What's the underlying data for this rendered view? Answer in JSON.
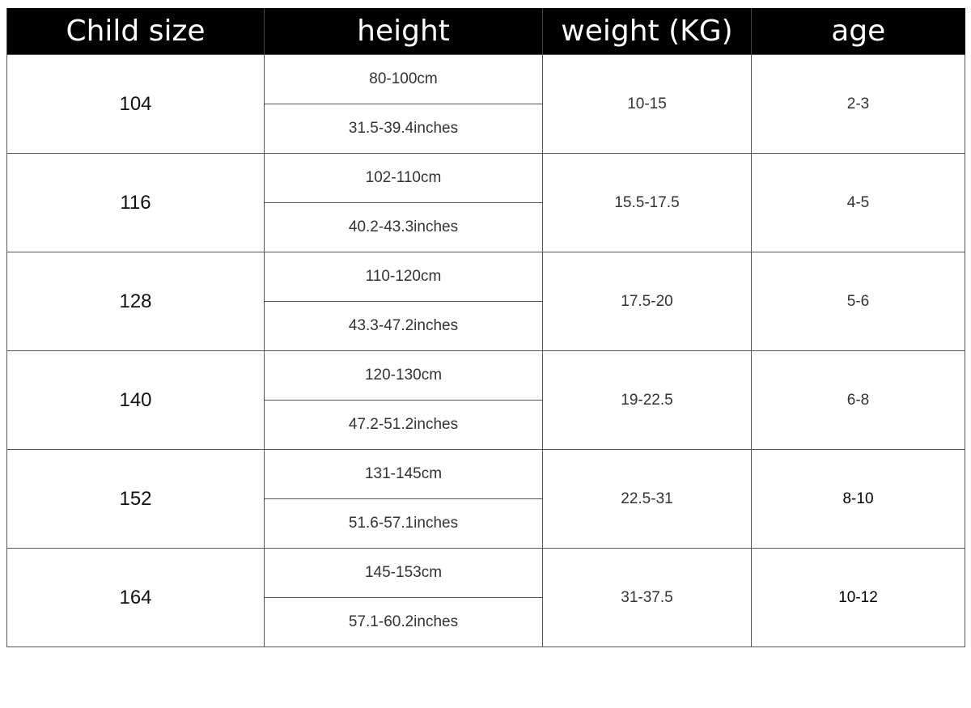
{
  "headers": [
    "Child size",
    "height",
    "weight (KG)",
    "age"
  ],
  "rows": [
    {
      "size": "104",
      "height_cm": "80-100cm",
      "height_in": "31.5-39.4inches",
      "weight": "10-15",
      "age": "2-3"
    },
    {
      "size": "116",
      "height_cm": "102-110cm",
      "height_in": "40.2-43.3inches",
      "weight": "15.5-17.5",
      "age": "4-5"
    },
    {
      "size": "128",
      "height_cm": "110-120cm",
      "height_in": "43.3-47.2inches",
      "weight": "17.5-20",
      "age": "5-6"
    },
    {
      "size": "140",
      "height_cm": "120-130cm",
      "height_in": "47.2-51.2inches",
      "weight": "19-22.5",
      "age": "6-8"
    },
    {
      "size": "152",
      "height_cm": "131-145cm",
      "height_in": "51.6-57.1inches",
      "weight": "22.5-31",
      "age": "8-10"
    },
    {
      "size": "164",
      "height_cm": "145-153cm",
      "height_in": "57.1-60.2inches",
      "weight": "31-37.5",
      "age": "10-12"
    }
  ]
}
